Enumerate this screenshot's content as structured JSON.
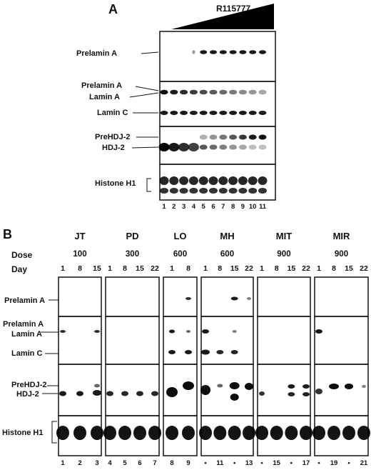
{
  "panel_a": {
    "letter": "A",
    "drug": "R115777",
    "labels": {
      "prelamin_top": "Prelamin A",
      "prelamin_mid": "Prelamin A",
      "lamin_a": "Lamin A",
      "lamin_c": "Lamin C",
      "prehdj": "PreHDJ-2",
      "hdj": "HDJ-2",
      "histone": "Histone H1"
    },
    "lanes": [
      "1",
      "2",
      "3",
      "4",
      "5",
      "6",
      "7",
      "8",
      "9",
      "10",
      "11"
    ]
  },
  "panel_b": {
    "letter": "B",
    "row_dose": "Dose",
    "row_day": "Day",
    "labels": {
      "prelamin_top": "Prelamin A",
      "prelamin_mid": "Prelamin A",
      "lamin_a": "Lamin A",
      "lamin_c": "Lamin C",
      "prehdj": "PreHDJ-2",
      "hdj": "HDJ-2",
      "histone": "Histone H1"
    },
    "patients": [
      {
        "name": "JT",
        "dose": "100",
        "days": [
          "1",
          "8",
          "15"
        ],
        "lanes": [
          "1",
          "2",
          "3"
        ]
      },
      {
        "name": "PD",
        "dose": "300",
        "days": [
          "1",
          "8",
          "15",
          "22"
        ],
        "lanes": [
          "4",
          "5",
          "6",
          "7"
        ]
      },
      {
        "name": "LO",
        "dose": "600",
        "days": [
          "1",
          "8"
        ],
        "lanes": [
          "8",
          "9"
        ]
      },
      {
        "name": "MH",
        "dose": "600",
        "days": [
          "1",
          "8",
          "15",
          "22"
        ],
        "lanes": [
          "•",
          "11",
          "•",
          "13"
        ]
      },
      {
        "name": "MIT",
        "dose": "900",
        "days": [
          "1",
          "8",
          "15",
          "22"
        ],
        "lanes": [
          "•",
          "15",
          "•",
          "17"
        ]
      },
      {
        "name": "MIR",
        "dose": "900",
        "days": [
          "1",
          "8",
          "15",
          "22"
        ],
        "lanes": [
          "•",
          "19",
          "•",
          "21"
        ]
      }
    ]
  }
}
